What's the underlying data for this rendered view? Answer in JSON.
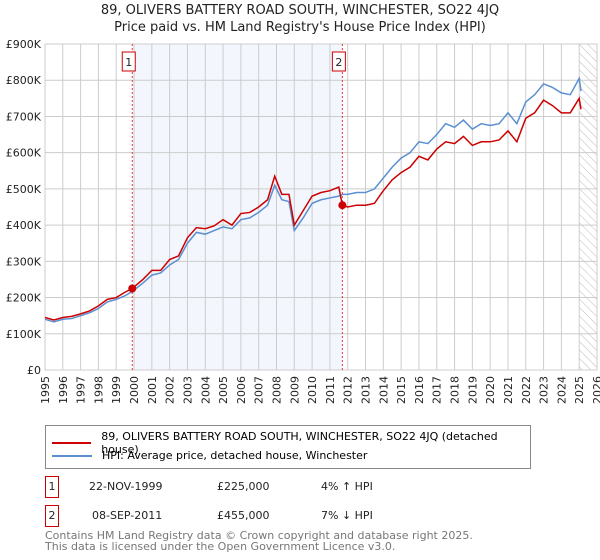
{
  "chart_data": {
    "type": "line",
    "title": "89, OLIVERS BATTERY ROAD SOUTH, WINCHESTER, SO22 4JQ",
    "subtitle": "Price paid vs. HM Land Registry's House Price Index (HPI)",
    "xlim": [
      1995,
      2026
    ],
    "ylim": [
      0,
      900000
    ],
    "y_ticks": [
      {
        "v": 0,
        "l": "£0"
      },
      {
        "v": 100000,
        "l": "£100K"
      },
      {
        "v": 200000,
        "l": "£200K"
      },
      {
        "v": 300000,
        "l": "£300K"
      },
      {
        "v": 400000,
        "l": "£400K"
      },
      {
        "v": 500000,
        "l": "£500K"
      },
      {
        "v": 600000,
        "l": "£600K"
      },
      {
        "v": 700000,
        "l": "£700K"
      },
      {
        "v": 800000,
        "l": "£800K"
      },
      {
        "v": 900000,
        "l": "£900K"
      }
    ],
    "x_ticks": [
      "1995",
      "1996",
      "1997",
      "1998",
      "1999",
      "2000",
      "2001",
      "2002",
      "2003",
      "2004",
      "2005",
      "2006",
      "2007",
      "2008",
      "2009",
      "2010",
      "2011",
      "2012",
      "2013",
      "2014",
      "2015",
      "2016",
      "2017",
      "2018",
      "2019",
      "2020",
      "2021",
      "2022",
      "2023",
      "2024",
      "2025",
      "2026"
    ],
    "grid": true,
    "shaded_range": [
      1999.9,
      2011.7
    ],
    "future_hatch_from": 2025.0,
    "series": [
      {
        "name": "89, OLIVERS BATTERY ROAD SOUTH, WINCHESTER, SO22 4JQ (detached house)",
        "color": "#cc0000",
        "x": [
          1995,
          1995.5,
          1996,
          1996.5,
          1997,
          1997.5,
          1998,
          1998.5,
          1999,
          1999.5,
          1999.9,
          2000.5,
          2001,
          2001.5,
          2002,
          2002.5,
          2003,
          2003.5,
          2004,
          2004.5,
          2005,
          2005.5,
          2006,
          2006.5,
          2007,
          2007.5,
          2007.9,
          2008.3,
          2008.7,
          2009,
          2009.5,
          2010,
          2010.5,
          2011,
          2011.5,
          2011.7,
          2012,
          2012.5,
          2013,
          2013.5,
          2014,
          2014.5,
          2015,
          2015.5,
          2016,
          2016.5,
          2017,
          2017.5,
          2018,
          2018.5,
          2019,
          2019.5,
          2020,
          2020.5,
          2021,
          2021.5,
          2022,
          2022.5,
          2023,
          2023.5,
          2024,
          2024.5,
          2025,
          2025.1
        ],
        "y": [
          145000,
          138000,
          145000,
          148000,
          155000,
          163000,
          177000,
          195000,
          200000,
          215000,
          225000,
          250000,
          275000,
          275000,
          305000,
          315000,
          365000,
          393000,
          390000,
          398000,
          415000,
          400000,
          432000,
          435000,
          450000,
          470000,
          535000,
          485000,
          485000,
          400000,
          440000,
          480000,
          490000,
          495000,
          505000,
          455000,
          450000,
          455000,
          455000,
          460000,
          495000,
          525000,
          545000,
          560000,
          590000,
          580000,
          610000,
          630000,
          625000,
          645000,
          620000,
          630000,
          630000,
          635000,
          660000,
          630000,
          695000,
          710000,
          745000,
          730000,
          710000,
          710000,
          750000,
          720000
        ]
      },
      {
        "name": "HPI: Average price, detached house, Winchester",
        "color": "#5b8fd0",
        "x": [
          1995,
          1995.5,
          1996,
          1996.5,
          1997,
          1997.5,
          1998,
          1998.5,
          1999,
          1999.5,
          1999.9,
          2000.5,
          2001,
          2001.5,
          2002,
          2002.5,
          2003,
          2003.5,
          2004,
          2004.5,
          2005,
          2005.5,
          2006,
          2006.5,
          2007,
          2007.5,
          2007.9,
          2008.3,
          2008.7,
          2009,
          2009.5,
          2010,
          2010.5,
          2011,
          2011.5,
          2011.7,
          2012,
          2012.5,
          2013,
          2013.5,
          2014,
          2014.5,
          2015,
          2015.5,
          2016,
          2016.5,
          2017,
          2017.5,
          2018,
          2018.5,
          2019,
          2019.5,
          2020,
          2020.5,
          2021,
          2021.5,
          2022,
          2022.5,
          2023,
          2023.5,
          2024,
          2024.5,
          2025,
          2025.1
        ],
        "y": [
          140000,
          133000,
          140000,
          142000,
          150000,
          158000,
          170000,
          188000,
          195000,
          205000,
          217000,
          240000,
          262000,
          268000,
          290000,
          305000,
          350000,
          380000,
          375000,
          385000,
          395000,
          390000,
          415000,
          420000,
          435000,
          455000,
          510000,
          470000,
          465000,
          385000,
          420000,
          460000,
          470000,
          475000,
          480000,
          485000,
          485000,
          490000,
          490000,
          500000,
          530000,
          560000,
          585000,
          600000,
          630000,
          625000,
          650000,
          680000,
          670000,
          690000,
          665000,
          680000,
          675000,
          680000,
          710000,
          680000,
          740000,
          760000,
          790000,
          780000,
          765000,
          760000,
          805000,
          770000
        ]
      }
    ],
    "transactions": [
      {
        "id": "1",
        "x": 1999.9,
        "date": "22-NOV-1999",
        "price": 225000,
        "price_label": "£225,000",
        "hpi": "4% ↑ HPI"
      },
      {
        "id": "2",
        "x": 2011.7,
        "date": "08-SEP-2011",
        "price": 455000,
        "price_label": "£455,000",
        "hpi": "7% ↓ HPI"
      }
    ]
  },
  "footer": {
    "line1": "Contains HM Land Registry data © Crown copyright and database right 2025.",
    "line2": "This data is licensed under the Open Government Licence v3.0."
  }
}
